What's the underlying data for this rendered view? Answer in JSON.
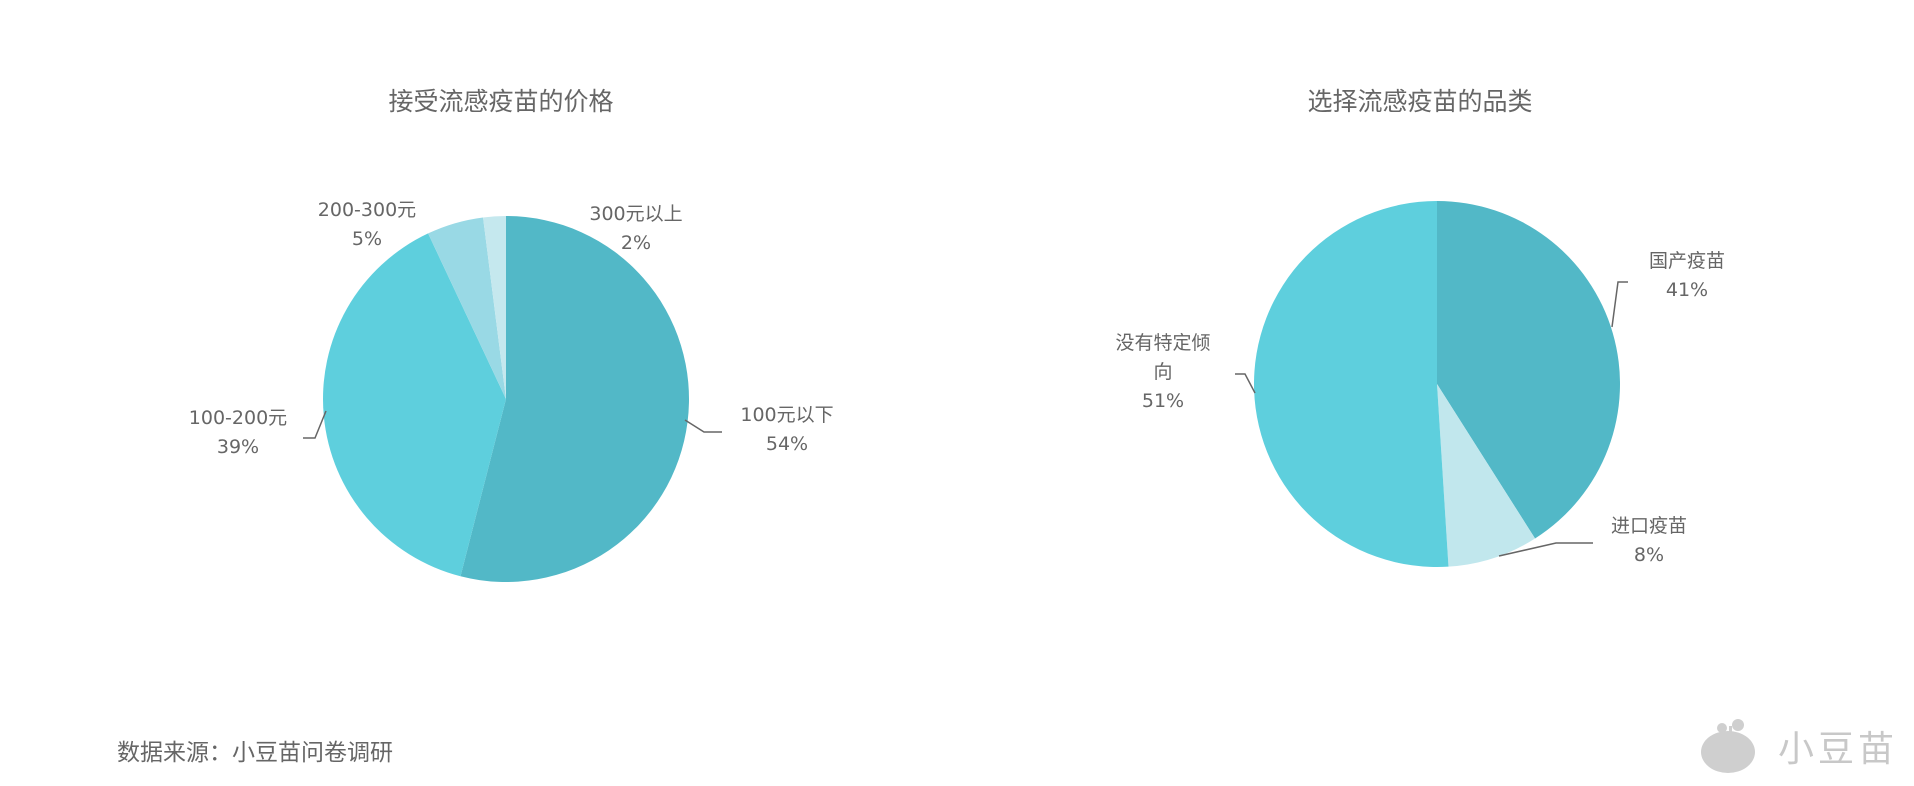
{
  "chart_data": [
    {
      "type": "pie",
      "title": "接受流感疫苗的价格",
      "start": "top",
      "direction": "clockwise",
      "categories": [
        "100元以下",
        "100-200元",
        "200-300元",
        "300元以上"
      ],
      "values": [
        54,
        39,
        5,
        2
      ],
      "value_labels": [
        "54%",
        "39%",
        "5%",
        "2%"
      ],
      "colors": [
        "#52b8c7",
        "#5ecfdd",
        "#99d9e5",
        "#c5e8ee"
      ]
    },
    {
      "type": "pie",
      "title": "选择流感疫苗的品类",
      "start": "top",
      "direction": "clockwise",
      "categories": [
        "国产疫苗",
        "进口疫苗",
        "没有特定倾向"
      ],
      "label_lines": [
        [
          "国产疫苗"
        ],
        [
          "进口疫苗"
        ],
        [
          "没有特定倾",
          "向"
        ]
      ],
      "values": [
        41,
        8,
        51
      ],
      "value_labels": [
        "41%",
        "8%",
        "51%"
      ],
      "colors": [
        "#52b8c7",
        "#c1e7ed",
        "#5ecfdd"
      ]
    }
  ],
  "footer": {
    "source": "数据来源：小豆苗问卷调研",
    "logo_text": "小豆苗"
  }
}
